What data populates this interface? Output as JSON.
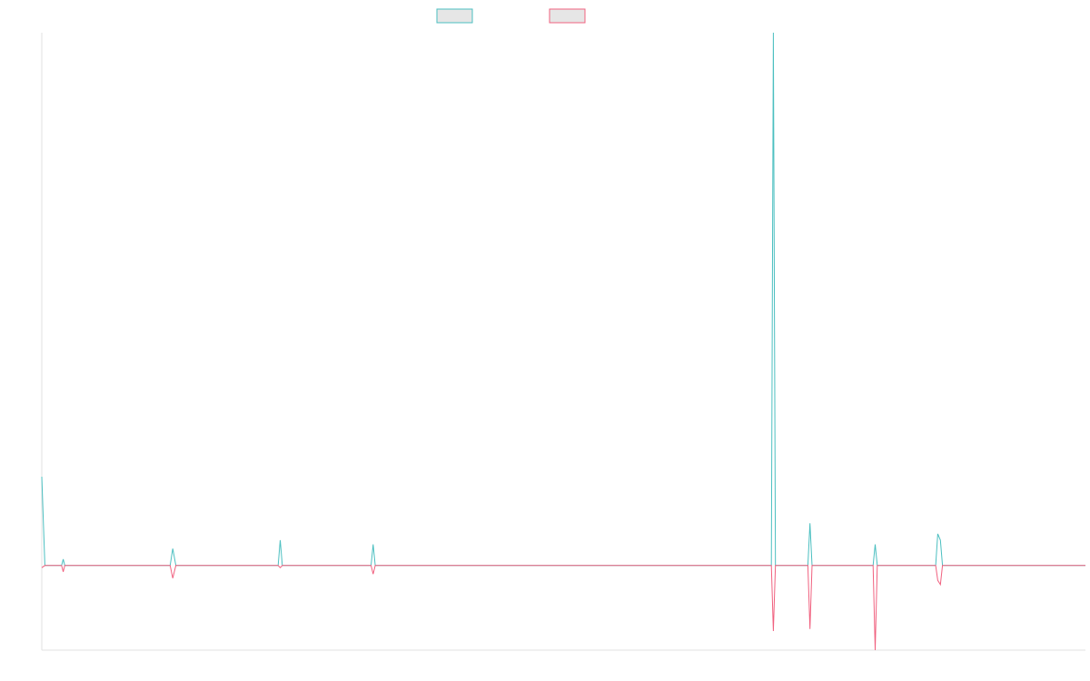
{
  "colors": {
    "series_a": "#4bbfc0",
    "series_b": "#f0617f",
    "legend_fill": "#e6e6e6",
    "axis": "#e2e2e2"
  },
  "chart_data": {
    "type": "line",
    "title": "",
    "xlabel": "",
    "ylabel": "",
    "grid": false,
    "legend_position": "top-center",
    "ylim": [
      -20,
      126
    ],
    "xlim": [
      0,
      200
    ],
    "series": [
      {
        "color": "#4bbfc0",
        "points": [
          [
            0,
            21
          ],
          [
            0.6,
            0
          ],
          [
            3.8,
            0
          ],
          [
            4.1,
            1.5
          ],
          [
            4.4,
            0
          ],
          [
            24.6,
            0
          ],
          [
            25.1,
            4
          ],
          [
            25.7,
            0
          ],
          [
            45.3,
            0
          ],
          [
            45.7,
            6
          ],
          [
            46.1,
            0
          ],
          [
            63.1,
            0
          ],
          [
            63.5,
            5
          ],
          [
            63.9,
            0
          ],
          [
            139.8,
            0
          ],
          [
            140.2,
            126
          ],
          [
            140.6,
            0
          ],
          [
            146.8,
            0
          ],
          [
            147.2,
            10
          ],
          [
            147.6,
            0
          ],
          [
            159.3,
            0
          ],
          [
            159.7,
            5
          ],
          [
            160.1,
            0
          ],
          [
            171.3,
            0
          ],
          [
            171.7,
            7.5
          ],
          [
            172.2,
            6
          ],
          [
            172.6,
            0
          ],
          [
            200,
            0
          ]
        ]
      },
      {
        "color": "#f0617f",
        "points": [
          [
            0,
            -0.5
          ],
          [
            0.6,
            0
          ],
          [
            3.8,
            0
          ],
          [
            4.1,
            -1.5
          ],
          [
            4.4,
            0
          ],
          [
            24.6,
            0
          ],
          [
            25.1,
            -3
          ],
          [
            25.7,
            0
          ],
          [
            45.3,
            0
          ],
          [
            45.7,
            -0.5
          ],
          [
            46.1,
            0
          ],
          [
            63.1,
            0
          ],
          [
            63.5,
            -2
          ],
          [
            63.9,
            0
          ],
          [
            139.8,
            0
          ],
          [
            140.2,
            -15.5
          ],
          [
            140.6,
            0
          ],
          [
            146.8,
            0
          ],
          [
            147.2,
            -15
          ],
          [
            147.6,
            0
          ],
          [
            159.3,
            0
          ],
          [
            159.7,
            -20
          ],
          [
            160.1,
            0
          ],
          [
            171.3,
            0
          ],
          [
            171.7,
            -3.5
          ],
          [
            172.2,
            -4.5
          ],
          [
            172.6,
            0
          ],
          [
            200,
            0
          ]
        ]
      }
    ]
  }
}
